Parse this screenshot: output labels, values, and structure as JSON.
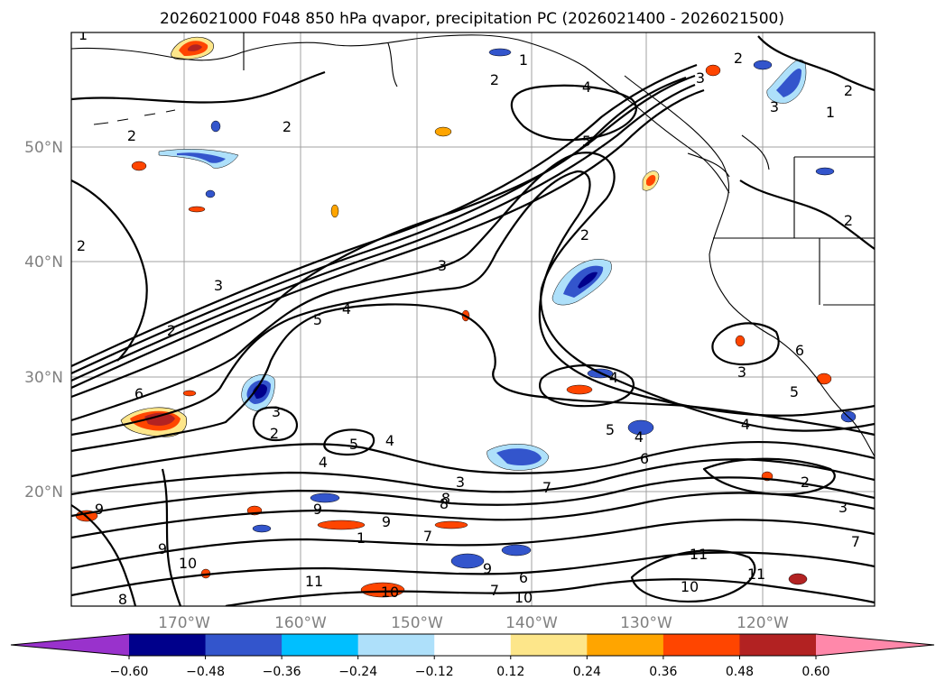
{
  "title": "2026021000 F048 850 hPa qvapor, precipitation PC (2026021400 - 2026021500)",
  "lon_labels": [
    "170°W",
    "160°W",
    "150°W",
    "140°W",
    "130°W",
    "120°W"
  ],
  "lat_labels": [
    "50°N",
    "40°N",
    "30°N",
    "20°N"
  ],
  "colorbar": {
    "tick_labels": [
      "-0.60",
      "-0.48",
      "-0.36",
      "-0.24",
      "-0.12",
      "0.12",
      "0.24",
      "0.36",
      "0.48",
      "0.60"
    ],
    "colors": [
      "#9932cc",
      "#00008b",
      "#3355cc",
      "#00bfff",
      "#aee0fa",
      "#ffffff",
      "#fde68a",
      "#ffa500",
      "#ff4500",
      "#b22222",
      "#ff88aa"
    ]
  },
  "contour_labels": [
    "1",
    "2",
    "2",
    "3",
    "4",
    "5",
    "2",
    "3",
    "5",
    "4",
    "3",
    "2",
    "5",
    "4",
    "3",
    "2",
    "6",
    "3",
    "2",
    "4",
    "5",
    "4",
    "3",
    "4",
    "2",
    "5",
    "4",
    "6",
    "7",
    "8",
    "9",
    "9",
    "7",
    "9",
    "6",
    "1",
    "11",
    "10",
    "11",
    "10",
    "11",
    "7",
    "10",
    "8",
    "3",
    "2",
    "7",
    "10",
    "9",
    "8",
    "9",
    "6",
    "2",
    "2",
    "1",
    "3",
    "2",
    "1"
  ]
}
